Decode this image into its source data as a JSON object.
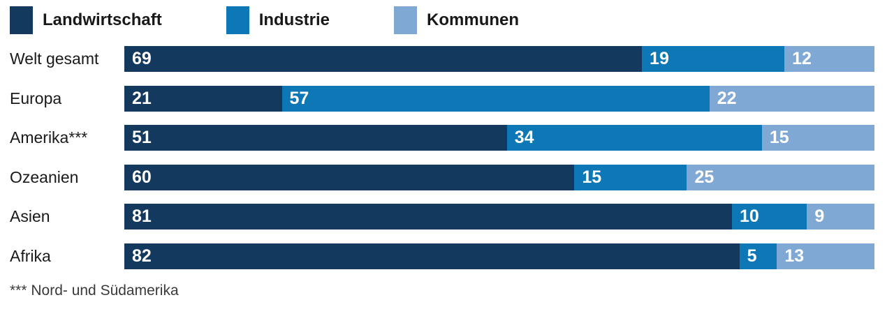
{
  "legend": {
    "items": [
      {
        "label": "Landwirtschaft",
        "color": "#14395F"
      },
      {
        "label": "Industrie",
        "color": "#0E78B6"
      },
      {
        "label": "Kommunen",
        "color": "#7FA9D4"
      }
    ]
  },
  "chart_data": {
    "type": "bar",
    "orientation": "horizontal-stacked",
    "categories": [
      "Welt gesamt",
      "Europa",
      "Amerika***",
      "Ozeanien",
      "Asien",
      "Afrika"
    ],
    "series": [
      {
        "name": "Landwirtschaft",
        "color": "#14395F",
        "values": [
          69,
          21,
          51,
          60,
          81,
          82
        ]
      },
      {
        "name": "Industrie",
        "color": "#0E78B6",
        "values": [
          19,
          57,
          34,
          15,
          10,
          5
        ]
      },
      {
        "name": "Kommunen",
        "color": "#7FA9D4",
        "values": [
          12,
          22,
          15,
          25,
          9,
          13
        ]
      }
    ],
    "xlim": [
      0,
      100
    ],
    "value_labels": true,
    "legend_position": "top",
    "grid": false
  },
  "footnote": "*** Nord- und Südamerika"
}
